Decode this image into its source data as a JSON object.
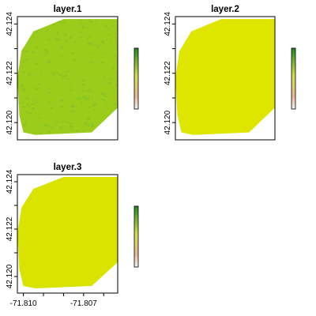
{
  "chart_data": {
    "type": "heatmap",
    "layout": "3 raster panels in a 2x2 grid (bottom-right empty)",
    "colors": {
      "frame": "#000000",
      "background": "#ffffff",
      "legend_top": "#1e8a1e",
      "legend_middle": "#d4df4a",
      "legend_low": "#e8b898",
      "legend_bottom": "#f4f4f4"
    },
    "x_axis": {
      "tick_values": [
        -71.81,
        -71.809,
        -71.808,
        -71.807,
        -71.806
      ],
      "tick_labels": [
        "-71.810",
        "",
        "",
        "-71.807",
        ""
      ],
      "shown_on": "bottom-left panel only",
      "range": [
        -71.8103,
        -71.8053
      ]
    },
    "y_axis": {
      "tick_values": [
        42.12,
        42.121,
        42.122,
        42.123,
        42.124
      ],
      "tick_labels": [
        "42.120",
        "",
        "42.122",
        "",
        "42.124"
      ],
      "range": [
        42.1193,
        42.1243
      ]
    },
    "panels": [
      {
        "title": "layer.1",
        "fill_color": "#9ccc1a",
        "texture_color": "#7fbf2a",
        "textured": true,
        "legend": true
      },
      {
        "title": "layer.2",
        "fill_color": "#dee600",
        "texture_color": "#e2e600",
        "textured": false,
        "legend": true
      },
      {
        "title": "layer.3",
        "fill_color": "#d8e400",
        "texture_color": "#d4e000",
        "textured": false,
        "legend": true
      }
    ],
    "raster_extent_polygon": [
      [
        -71.808,
        42.1242
      ],
      [
        -71.8053,
        42.1242
      ],
      [
        -71.8053,
        42.1206
      ],
      [
        -71.8066,
        42.1196
      ],
      [
        -71.8094,
        42.1195
      ],
      [
        -71.81,
        42.1196
      ],
      [
        -71.8102,
        42.1203
      ],
      [
        -71.8103,
        42.1218
      ],
      [
        -71.8101,
        42.1229
      ],
      [
        -71.8095,
        42.1237
      ],
      [
        -71.8086,
        42.124
      ]
    ]
  }
}
